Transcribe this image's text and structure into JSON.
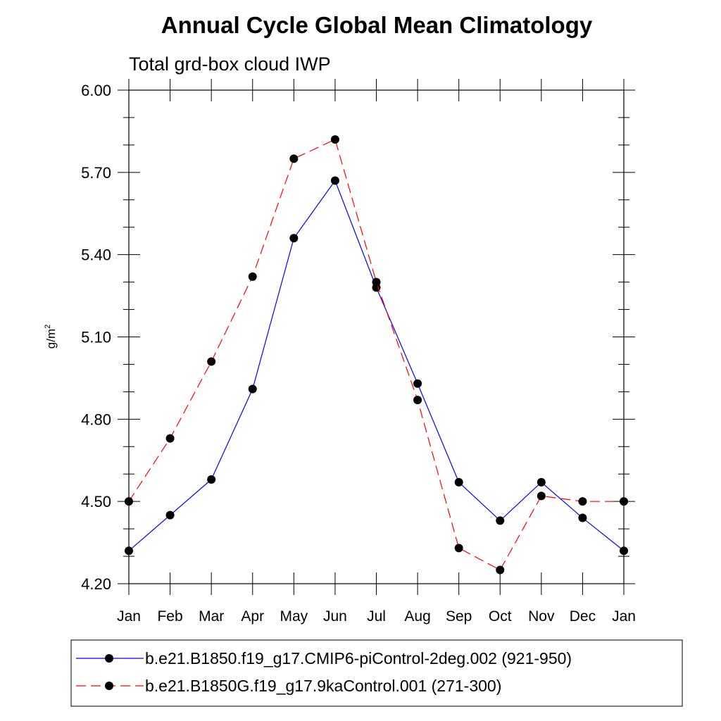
{
  "chart_data": {
    "type": "line",
    "title": "Annual Cycle Global Mean Climatology",
    "subtitle": "Total grd-box cloud IWP",
    "ylabel": "g/m",
    "ylabel_sup": "2",
    "ylim": [
      4.2,
      6.0
    ],
    "yticks": [
      "4.20",
      "4.50",
      "4.80",
      "5.10",
      "5.40",
      "5.70",
      "6.00"
    ],
    "categories": [
      "Jan",
      "Feb",
      "Mar",
      "Apr",
      "May",
      "Jun",
      "Jul",
      "Aug",
      "Sep",
      "Oct",
      "Nov",
      "Dec",
      "Jan"
    ],
    "series": [
      {
        "name": "b.e21.B1850.f19_g17.CMIP6-piControl-2deg.002 (921-950)",
        "color": "#0000ff",
        "dash": "solid",
        "values": [
          4.32,
          4.45,
          4.58,
          4.91,
          5.46,
          5.67,
          5.28,
          4.93,
          4.57,
          4.43,
          4.57,
          4.44,
          4.32
        ]
      },
      {
        "name": "b.e21.B1850G.f19_g17.9kaControl.001 (271-300)",
        "color": "#ff0000",
        "dash": "dashed",
        "values": [
          4.5,
          4.73,
          5.01,
          5.32,
          5.75,
          5.82,
          5.3,
          4.87,
          4.33,
          4.25,
          4.52,
          4.5,
          4.5
        ]
      }
    ],
    "grid": false,
    "legend_position": "bottom"
  }
}
